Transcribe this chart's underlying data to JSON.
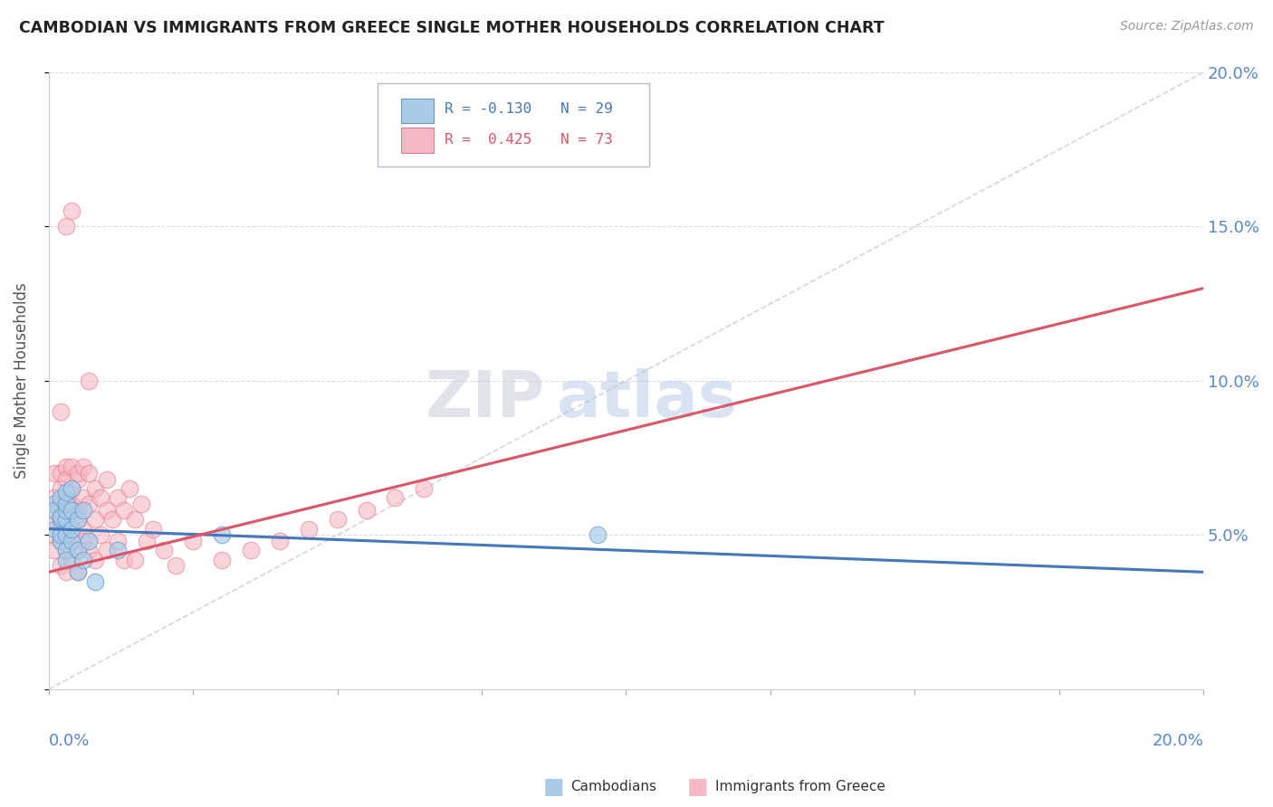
{
  "title": "CAMBODIAN VS IMMIGRANTS FROM GREECE SINGLE MOTHER HOUSEHOLDS CORRELATION CHART",
  "source": "Source: ZipAtlas.com",
  "ylabel": "Single Mother Households",
  "xmin": 0.0,
  "xmax": 0.2,
  "ymin": 0.0,
  "ymax": 0.2,
  "yticks": [
    0.0,
    0.05,
    0.1,
    0.15,
    0.2
  ],
  "ytick_labels_right": [
    "",
    "5.0%",
    "10.0%",
    "15.0%",
    "20.0%"
  ],
  "watermark_zip": "ZIP",
  "watermark_atlas": "atlas",
  "legend_r1": "R = -0.130",
  "legend_n1": "N = 29",
  "legend_r2": "R =  0.425",
  "legend_n2": "N = 73",
  "cambodian_color": "#a8cce8",
  "cambodian_edge": "#6699cc",
  "greece_color": "#f5b8c4",
  "greece_edge": "#e8788a",
  "blue_line_color": "#4477bb",
  "pink_line_color": "#dd5566",
  "ref_line_color": "#c8ccd8",
  "blue_line_x0": 0.0,
  "blue_line_x1": 0.2,
  "blue_line_y0": 0.052,
  "blue_line_y1": 0.038,
  "pink_line_x0": 0.0,
  "pink_line_x1": 0.2,
  "pink_line_y0": 0.038,
  "pink_line_y1": 0.13,
  "cambodian_points_x": [
    0.001,
    0.001,
    0.001,
    0.002,
    0.002,
    0.002,
    0.002,
    0.002,
    0.003,
    0.003,
    0.003,
    0.003,
    0.003,
    0.003,
    0.003,
    0.004,
    0.004,
    0.004,
    0.004,
    0.005,
    0.005,
    0.005,
    0.006,
    0.006,
    0.007,
    0.008,
    0.012,
    0.03,
    0.095
  ],
  "cambodian_points_y": [
    0.052,
    0.06,
    0.058,
    0.055,
    0.048,
    0.062,
    0.05,
    0.056,
    0.045,
    0.055,
    0.058,
    0.042,
    0.05,
    0.06,
    0.064,
    0.048,
    0.058,
    0.052,
    0.065,
    0.038,
    0.045,
    0.055,
    0.042,
    0.058,
    0.048,
    0.035,
    0.045,
    0.05,
    0.05
  ],
  "greece_points_x": [
    0.001,
    0.001,
    0.001,
    0.001,
    0.001,
    0.001,
    0.002,
    0.002,
    0.002,
    0.002,
    0.002,
    0.002,
    0.002,
    0.003,
    0.003,
    0.003,
    0.003,
    0.003,
    0.003,
    0.003,
    0.003,
    0.004,
    0.004,
    0.004,
    0.004,
    0.004,
    0.005,
    0.005,
    0.005,
    0.005,
    0.005,
    0.005,
    0.006,
    0.006,
    0.006,
    0.006,
    0.007,
    0.007,
    0.007,
    0.008,
    0.008,
    0.008,
    0.009,
    0.009,
    0.01,
    0.01,
    0.01,
    0.011,
    0.012,
    0.012,
    0.013,
    0.013,
    0.014,
    0.015,
    0.015,
    0.016,
    0.017,
    0.018,
    0.02,
    0.022,
    0.025,
    0.03,
    0.035,
    0.04,
    0.045,
    0.05,
    0.055,
    0.06,
    0.065,
    0.002,
    0.003,
    0.004,
    0.007
  ],
  "greece_points_y": [
    0.058,
    0.05,
    0.062,
    0.045,
    0.07,
    0.055,
    0.06,
    0.048,
    0.065,
    0.055,
    0.07,
    0.04,
    0.052,
    0.058,
    0.045,
    0.072,
    0.05,
    0.062,
    0.038,
    0.068,
    0.055,
    0.06,
    0.048,
    0.072,
    0.042,
    0.065,
    0.058,
    0.045,
    0.068,
    0.055,
    0.07,
    0.038,
    0.062,
    0.052,
    0.072,
    0.048,
    0.06,
    0.045,
    0.07,
    0.055,
    0.065,
    0.042,
    0.062,
    0.05,
    0.068,
    0.045,
    0.058,
    0.055,
    0.062,
    0.048,
    0.058,
    0.042,
    0.065,
    0.055,
    0.042,
    0.06,
    0.048,
    0.052,
    0.045,
    0.04,
    0.048,
    0.042,
    0.045,
    0.048,
    0.052,
    0.055,
    0.058,
    0.062,
    0.065,
    0.09,
    0.15,
    0.155,
    0.1
  ]
}
